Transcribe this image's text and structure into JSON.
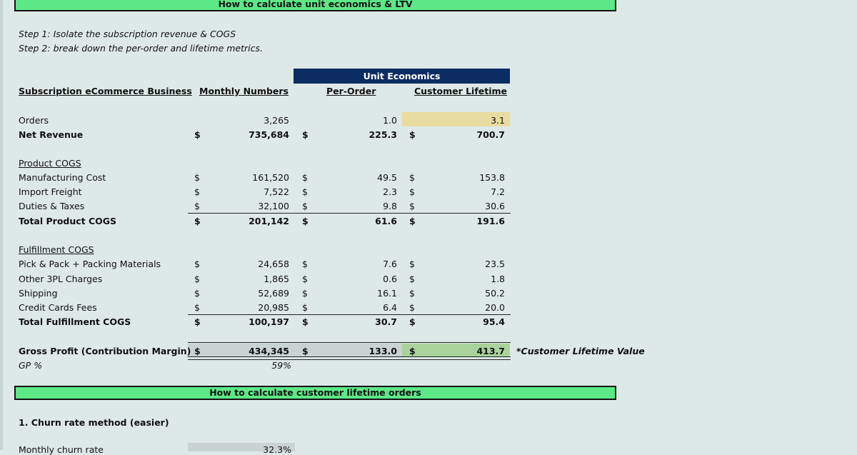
{
  "banners": {
    "top": "How to calculate unit economics & LTV",
    "middle": "How to calculate customer lifetime orders"
  },
  "steps": [
    "Step 1: Isolate the subscription revenue & COGS",
    "Step 2: break down the per-order and lifetime metrics."
  ],
  "unit_economics_header": "Unit Economics",
  "columns": {
    "business": "Subscription eCommerce Business",
    "monthly": "Monthly Numbers",
    "per_order": "Per-Order",
    "lifetime": "Customer Lifetime"
  },
  "currency": "$",
  "rows": {
    "orders": {
      "label": "Orders",
      "monthly": "3,265",
      "per_order": "1.0",
      "lifetime": "3.1"
    },
    "net_revenue": {
      "label": "Net Revenue",
      "monthly": "735,684",
      "per_order": "225.3",
      "lifetime": "700.7"
    },
    "product_cogs_title": "Product COGS",
    "manufacturing": {
      "label": "Manufacturing Cost",
      "monthly": "161,520",
      "per_order": "49.5",
      "lifetime": "153.8"
    },
    "import_freight": {
      "label": "Import Freight",
      "monthly": "7,522",
      "per_order": "2.3",
      "lifetime": "7.2"
    },
    "duties": {
      "label": "Duties & Taxes",
      "monthly": "32,100",
      "per_order": "9.8",
      "lifetime": "30.6"
    },
    "total_product": {
      "label": "Total Product COGS",
      "monthly": "201,142",
      "per_order": "61.6",
      "lifetime": "191.6"
    },
    "fulfillment_cogs_title": "Fulfillment COGS",
    "pick_pack": {
      "label": "Pick & Pack + Packing Materials",
      "monthly": "24,658",
      "per_order": "7.6",
      "lifetime": "23.5"
    },
    "other_3pl": {
      "label": "Other 3PL Charges",
      "monthly": "1,865",
      "per_order": "0.6",
      "lifetime": "1.8"
    },
    "shipping": {
      "label": "Shipping",
      "monthly": "52,689",
      "per_order": "16.1",
      "lifetime": "50.2"
    },
    "credit_cards": {
      "label": "Credit Cards Fees",
      "monthly": "20,985",
      "per_order": "6.4",
      "lifetime": "20.0"
    },
    "total_fulfillment": {
      "label": "Total Fulfillment COGS",
      "monthly": "100,197",
      "per_order": "30.7",
      "lifetime": "95.4"
    },
    "gross_profit": {
      "label": "Gross Profit (Contribution Margin)",
      "monthly": "434,345",
      "per_order": "133.0",
      "lifetime": "413.7",
      "note": "*Customer Lifetime Value"
    },
    "gp_pct": {
      "label": "GP %",
      "monthly": "59%"
    }
  },
  "churn": {
    "title": "1. Churn rate method (easier)",
    "label": "Monthly churn rate",
    "value": "32.3%"
  },
  "colors": {
    "banner": "#5de887",
    "header_navy": "#0c2c63",
    "highlight_yellow": "#e9dca0",
    "highlight_green": "#a9d39b",
    "background": "#dde9e7"
  }
}
